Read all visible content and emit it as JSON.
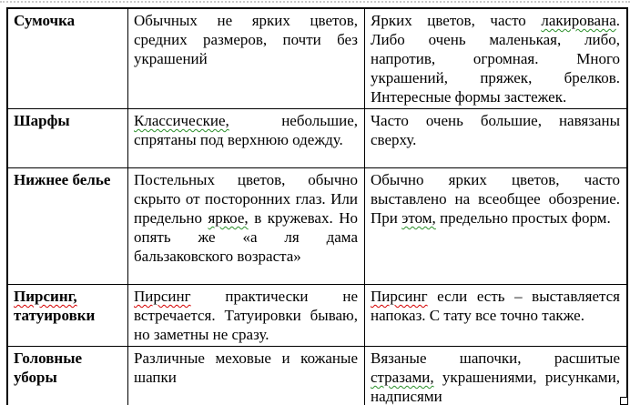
{
  "page": {
    "background_color": "#ffffff",
    "border_color": "#000000"
  },
  "icons": {
    "table_resize_handle": "small-square-outline"
  },
  "marks": {
    "green": "#2a8f2a",
    "red": "#d40000"
  },
  "table": {
    "columns": [
      "label",
      "left-style",
      "right-style"
    ],
    "rows": [
      {
        "label": [
          {
            "text": "Сумочка"
          }
        ],
        "col2": [
          {
            "text": "Обычных не ярких цветов, средних размеров, почти без украшений"
          }
        ],
        "col3": [
          {
            "text": "Ярких цветов, часто "
          },
          {
            "text": "лакирована",
            "mark": "green"
          },
          {
            "text": ". Либо очень маленькая, либо, напротив, огромная. Много украшений, пряжек, брелков. Интересные формы застежек."
          }
        ]
      },
      {
        "label": [
          {
            "text": "Шарфы"
          }
        ],
        "col2": [
          {
            "text": "Классические,",
            "mark": "green"
          },
          {
            "text": " небольшие, спрятаны под верхнюю одежду."
          }
        ],
        "col3": [
          {
            "text": "Часто очень большие, навязаны сверху."
          }
        ]
      },
      {
        "label": [
          {
            "text": "Нижнее белье"
          }
        ],
        "col2": [
          {
            "text": "Постельных цветов, обычно скрыто от посторонних глаз. Или предельно "
          },
          {
            "text": "яркое,",
            "mark": "green"
          },
          {
            "text": " в кружевах. Но опять же «а ля дама бальзаковского возраста»"
          }
        ],
        "col3": [
          {
            "text": "Обычно ярких цветов, часто выставлено на всеобщее обозрение. При "
          },
          {
            "text": "этом,",
            "mark": "green"
          },
          {
            "text": " предельно простых форм."
          }
        ]
      },
      {
        "label": [
          {
            "text": "Пирсинг,",
            "mark": "red"
          },
          {
            "text": " татуировки"
          }
        ],
        "col2": [
          {
            "text": "Пирсинг",
            "mark": "red"
          },
          {
            "text": " практически не встречается. Татуировки бываю, но заметны не сразу."
          }
        ],
        "col3": [
          {
            "text": "Пирсинг",
            "mark": "red"
          },
          {
            "text": " если есть – выставляется напоказ. С тату все точно также."
          }
        ]
      },
      {
        "label": [
          {
            "text": "Головные уборы"
          }
        ],
        "col2": [
          {
            "text": "Различные меховые и кожаные шапки"
          }
        ],
        "col3": [
          {
            "text": "Вязаные шапочки, расшитые "
          },
          {
            "text": "стразами,",
            "mark": "green"
          },
          {
            "text": " украшениями, рисунками, надписями"
          }
        ]
      }
    ]
  }
}
